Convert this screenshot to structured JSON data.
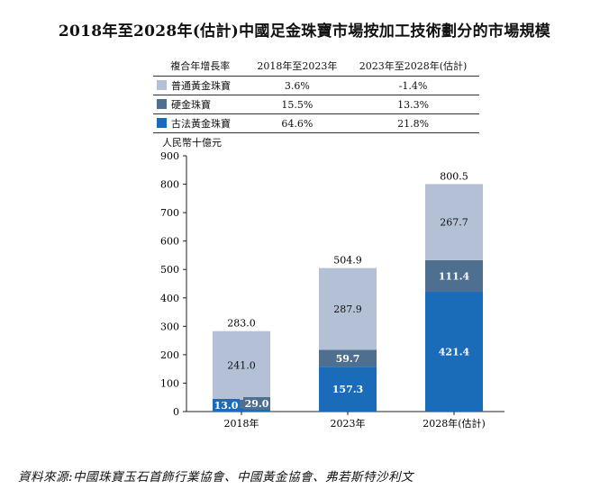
{
  "title": "2018年至2028年(估計)中國足金珠寶市場按加工技術劃分的市場規模",
  "cagr_table": {
    "header": [
      "複合年增長率",
      "2018年至2023年",
      "2023年至2028年(估計)"
    ],
    "rows": [
      {
        "label": "普通黃金珠寶",
        "color": "#b3c0d6",
        "v1": "3.6%",
        "v2": "-1.4%"
      },
      {
        "label": "硬金珠寶",
        "color": "#4f6f91",
        "v1": "15.5%",
        "v2": "13.3%"
      },
      {
        "label": "古法黃金珠寶",
        "color": "#1b6cb8",
        "v1": "64.6%",
        "v2": "21.8%"
      }
    ]
  },
  "source": "資料來源:中國珠寶玉石首飾行業協會、中國黃金協會、弗若斯特沙利文",
  "chart_data": {
    "type": "bar",
    "stacked": true,
    "ylabel": "人民幣十億元",
    "ylim": [
      0,
      900
    ],
    "yticks": [
      0,
      100,
      200,
      300,
      400,
      500,
      600,
      700,
      800,
      900
    ],
    "categories": [
      "2018年",
      "2023年",
      "2028年(估計)"
    ],
    "series": [
      {
        "name": "古法黃金珠寶",
        "color": "#1b6cb8",
        "values": [
          13.0,
          157.3,
          421.4
        ]
      },
      {
        "name": "硬金珠寶",
        "color": "#4f6f91",
        "values": [
          29.0,
          59.7,
          111.4
        ]
      },
      {
        "name": "普通黃金珠寶",
        "color": "#b3c0d6",
        "values": [
          241.0,
          287.9,
          267.7
        ]
      }
    ],
    "totals": [
      283.0,
      504.9,
      800.5
    ],
    "value_labels": [
      [
        "13.0",
        "157.3",
        "421.4"
      ],
      [
        "29.0",
        "59.7",
        "111.4"
      ],
      [
        "241.0",
        "287.9",
        "267.7"
      ]
    ],
    "total_labels": [
      "283.0",
      "504.9",
      "800.5"
    ],
    "grid": false
  }
}
